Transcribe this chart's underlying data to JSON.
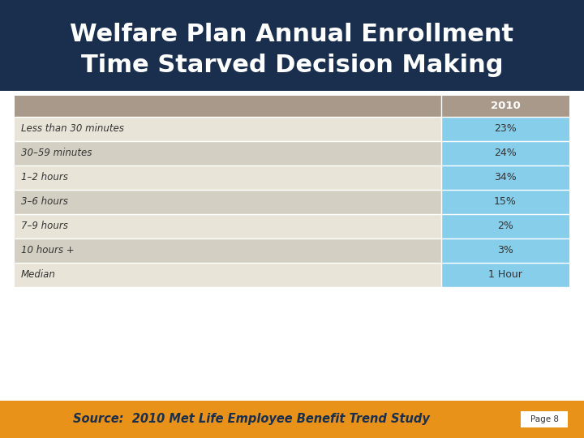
{
  "title_line1": "Welfare Plan Annual Enrollment",
  "title_line2": "Time Starved Decision Making",
  "title_bg_color": "#1a2f4e",
  "title_text_color": "#ffffff",
  "header_col": "2010",
  "header_bg_color": "#a8998a",
  "header_text_color": "#ffffff",
  "rows": [
    {
      "label": "Less than 30 minutes",
      "value": "23%"
    },
    {
      "label": "30–59 minutes",
      "value": "24%"
    },
    {
      "label": "1–2 hours",
      "value": "34%"
    },
    {
      "label": "3–6 hours",
      "value": "15%"
    },
    {
      "label": "7–9 hours",
      "value": "2%"
    },
    {
      "label": "10 hours +",
      "value": "3%"
    },
    {
      "label": "Median",
      "value": "1 Hour"
    }
  ],
  "row_label_bg_even": "#e8e4d8",
  "row_label_bg_odd": "#d4cfc3",
  "row_value_bg": "#87ceeb",
  "row_text_color": "#333333",
  "footer_bg_color": "#e8921a",
  "footer_text": "Source:  2010 Met Life Employee Benefit Trend Study",
  "footer_text_color": "#1a2f4e",
  "page_label": "Page 8",
  "bg_color": "#ffffff"
}
